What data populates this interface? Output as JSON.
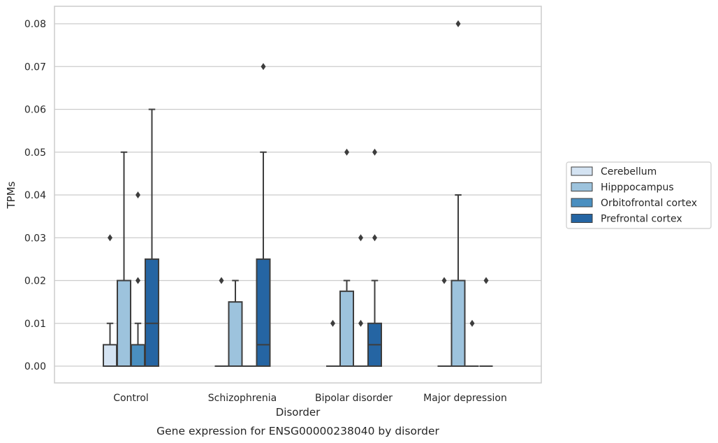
{
  "chart_data": {
    "type": "box",
    "xlabel": "Disorder",
    "ylabel": "TPMs",
    "caption": "Gene expression for ENSG00000238040 by disorder",
    "ylim": [
      -0.004,
      0.084
    ],
    "yticks": [
      "0.00",
      "0.01",
      "0.02",
      "0.03",
      "0.04",
      "0.05",
      "0.06",
      "0.07",
      "0.08"
    ],
    "grid": true,
    "legend_position": "right",
    "categories": [
      "Control",
      "Schizophrenia",
      "Bipolar disorder",
      "Major depression"
    ],
    "series": [
      {
        "name": "Cerebellum",
        "color": "#d4e3f2",
        "boxes": [
          {
            "q1": 0.0,
            "median": 0.0,
            "q3": 0.005,
            "whislo": 0.0,
            "whishi": 0.01,
            "fliers": [
              0.03
            ]
          },
          {
            "q1": 0.0,
            "median": 0.0,
            "q3": 0.0,
            "whislo": 0.0,
            "whishi": 0.0,
            "fliers": [
              0.02
            ]
          },
          {
            "q1": 0.0,
            "median": 0.0,
            "q3": 0.0,
            "whislo": 0.0,
            "whishi": 0.0,
            "fliers": [
              0.01
            ]
          },
          {
            "q1": 0.0,
            "median": 0.0,
            "q3": 0.0,
            "whislo": 0.0,
            "whishi": 0.0,
            "fliers": [
              0.02
            ]
          }
        ]
      },
      {
        "name": "Hipppocampus",
        "color": "#9dc3dd",
        "boxes": [
          {
            "q1": 0.0,
            "median": 0.0,
            "q3": 0.02,
            "whislo": 0.0,
            "whishi": 0.05,
            "fliers": []
          },
          {
            "q1": 0.0,
            "median": 0.0,
            "q3": 0.015,
            "whislo": 0.0,
            "whishi": 0.02,
            "fliers": []
          },
          {
            "q1": 0.0,
            "median": 0.0,
            "q3": 0.0175,
            "whislo": 0.0,
            "whishi": 0.02,
            "fliers": [
              0.05
            ]
          },
          {
            "q1": 0.0,
            "median": 0.0,
            "q3": 0.02,
            "whislo": 0.0,
            "whishi": 0.04,
            "fliers": [
              0.08
            ]
          }
        ]
      },
      {
        "name": "Orbitofrontal cortex",
        "color": "#4a8fc0",
        "boxes": [
          {
            "q1": 0.0,
            "median": 0.0,
            "q3": 0.005,
            "whislo": 0.0,
            "whishi": 0.01,
            "fliers": [
              0.02,
              0.04
            ]
          },
          {
            "q1": 0.0,
            "median": 0.0,
            "q3": 0.0,
            "whislo": 0.0,
            "whishi": 0.0,
            "fliers": []
          },
          {
            "q1": 0.0,
            "median": 0.0,
            "q3": 0.0,
            "whislo": 0.0,
            "whishi": 0.0,
            "fliers": [
              0.01,
              0.03
            ]
          },
          {
            "q1": 0.0,
            "median": 0.0,
            "q3": 0.0,
            "whislo": 0.0,
            "whishi": 0.0,
            "fliers": [
              0.01
            ]
          }
        ]
      },
      {
        "name": "Prefrontal cortex",
        "color": "#2565a3",
        "boxes": [
          {
            "q1": 0.0,
            "median": 0.01,
            "q3": 0.025,
            "whislo": 0.0,
            "whishi": 0.06,
            "fliers": []
          },
          {
            "q1": 0.0,
            "median": 0.005,
            "q3": 0.025,
            "whislo": 0.0,
            "whishi": 0.05,
            "fliers": [
              0.07
            ]
          },
          {
            "q1": 0.0,
            "median": 0.005,
            "q3": 0.01,
            "whislo": 0.0,
            "whishi": 0.02,
            "fliers": [
              0.03,
              0.05
            ]
          },
          {
            "q1": 0.0,
            "median": 0.0,
            "q3": 0.0,
            "whislo": 0.0,
            "whishi": 0.0,
            "fliers": [
              0.02
            ]
          }
        ]
      }
    ]
  }
}
